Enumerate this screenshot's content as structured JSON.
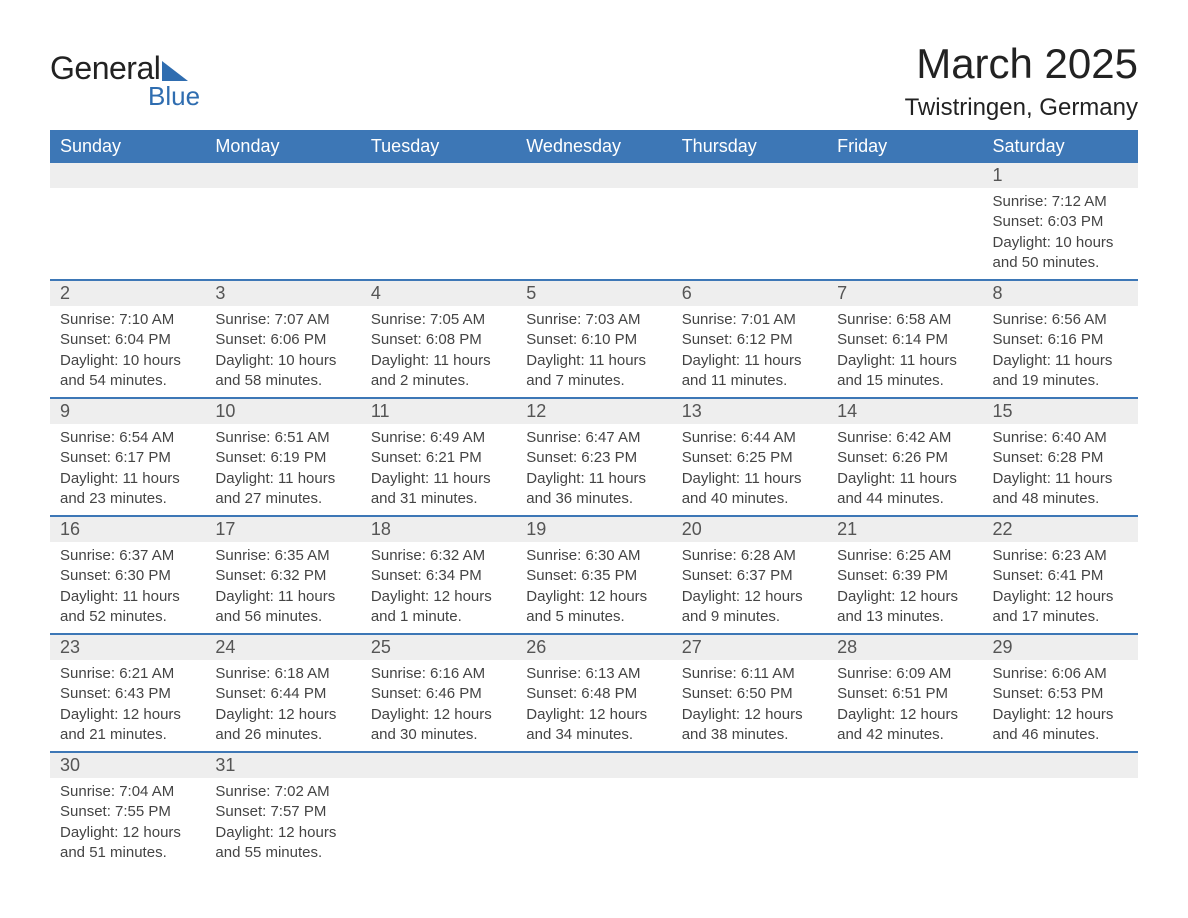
{
  "brand": {
    "text1": "General",
    "text2": "Blue",
    "accent_color": "#2f6db0"
  },
  "title": "March 2025",
  "location": "Twistringen, Germany",
  "header_bg": "#3d77b6",
  "header_fg": "#ffffff",
  "row_divider_color": "#3d77b6",
  "daynum_bg": "#eeeeee",
  "text_color": "#444444",
  "weekdays": [
    "Sunday",
    "Monday",
    "Tuesday",
    "Wednesday",
    "Thursday",
    "Friday",
    "Saturday"
  ],
  "weeks": [
    [
      null,
      null,
      null,
      null,
      null,
      null,
      {
        "n": "1",
        "sr": "Sunrise: 7:12 AM",
        "ss": "Sunset: 6:03 PM",
        "d1": "Daylight: 10 hours",
        "d2": "and 50 minutes."
      }
    ],
    [
      {
        "n": "2",
        "sr": "Sunrise: 7:10 AM",
        "ss": "Sunset: 6:04 PM",
        "d1": "Daylight: 10 hours",
        "d2": "and 54 minutes."
      },
      {
        "n": "3",
        "sr": "Sunrise: 7:07 AM",
        "ss": "Sunset: 6:06 PM",
        "d1": "Daylight: 10 hours",
        "d2": "and 58 minutes."
      },
      {
        "n": "4",
        "sr": "Sunrise: 7:05 AM",
        "ss": "Sunset: 6:08 PM",
        "d1": "Daylight: 11 hours",
        "d2": "and 2 minutes."
      },
      {
        "n": "5",
        "sr": "Sunrise: 7:03 AM",
        "ss": "Sunset: 6:10 PM",
        "d1": "Daylight: 11 hours",
        "d2": "and 7 minutes."
      },
      {
        "n": "6",
        "sr": "Sunrise: 7:01 AM",
        "ss": "Sunset: 6:12 PM",
        "d1": "Daylight: 11 hours",
        "d2": "and 11 minutes."
      },
      {
        "n": "7",
        "sr": "Sunrise: 6:58 AM",
        "ss": "Sunset: 6:14 PM",
        "d1": "Daylight: 11 hours",
        "d2": "and 15 minutes."
      },
      {
        "n": "8",
        "sr": "Sunrise: 6:56 AM",
        "ss": "Sunset: 6:16 PM",
        "d1": "Daylight: 11 hours",
        "d2": "and 19 minutes."
      }
    ],
    [
      {
        "n": "9",
        "sr": "Sunrise: 6:54 AM",
        "ss": "Sunset: 6:17 PM",
        "d1": "Daylight: 11 hours",
        "d2": "and 23 minutes."
      },
      {
        "n": "10",
        "sr": "Sunrise: 6:51 AM",
        "ss": "Sunset: 6:19 PM",
        "d1": "Daylight: 11 hours",
        "d2": "and 27 minutes."
      },
      {
        "n": "11",
        "sr": "Sunrise: 6:49 AM",
        "ss": "Sunset: 6:21 PM",
        "d1": "Daylight: 11 hours",
        "d2": "and 31 minutes."
      },
      {
        "n": "12",
        "sr": "Sunrise: 6:47 AM",
        "ss": "Sunset: 6:23 PM",
        "d1": "Daylight: 11 hours",
        "d2": "and 36 minutes."
      },
      {
        "n": "13",
        "sr": "Sunrise: 6:44 AM",
        "ss": "Sunset: 6:25 PM",
        "d1": "Daylight: 11 hours",
        "d2": "and 40 minutes."
      },
      {
        "n": "14",
        "sr": "Sunrise: 6:42 AM",
        "ss": "Sunset: 6:26 PM",
        "d1": "Daylight: 11 hours",
        "d2": "and 44 minutes."
      },
      {
        "n": "15",
        "sr": "Sunrise: 6:40 AM",
        "ss": "Sunset: 6:28 PM",
        "d1": "Daylight: 11 hours",
        "d2": "and 48 minutes."
      }
    ],
    [
      {
        "n": "16",
        "sr": "Sunrise: 6:37 AM",
        "ss": "Sunset: 6:30 PM",
        "d1": "Daylight: 11 hours",
        "d2": "and 52 minutes."
      },
      {
        "n": "17",
        "sr": "Sunrise: 6:35 AM",
        "ss": "Sunset: 6:32 PM",
        "d1": "Daylight: 11 hours",
        "d2": "and 56 minutes."
      },
      {
        "n": "18",
        "sr": "Sunrise: 6:32 AM",
        "ss": "Sunset: 6:34 PM",
        "d1": "Daylight: 12 hours",
        "d2": "and 1 minute."
      },
      {
        "n": "19",
        "sr": "Sunrise: 6:30 AM",
        "ss": "Sunset: 6:35 PM",
        "d1": "Daylight: 12 hours",
        "d2": "and 5 minutes."
      },
      {
        "n": "20",
        "sr": "Sunrise: 6:28 AM",
        "ss": "Sunset: 6:37 PM",
        "d1": "Daylight: 12 hours",
        "d2": "and 9 minutes."
      },
      {
        "n": "21",
        "sr": "Sunrise: 6:25 AM",
        "ss": "Sunset: 6:39 PM",
        "d1": "Daylight: 12 hours",
        "d2": "and 13 minutes."
      },
      {
        "n": "22",
        "sr": "Sunrise: 6:23 AM",
        "ss": "Sunset: 6:41 PM",
        "d1": "Daylight: 12 hours",
        "d2": "and 17 minutes."
      }
    ],
    [
      {
        "n": "23",
        "sr": "Sunrise: 6:21 AM",
        "ss": "Sunset: 6:43 PM",
        "d1": "Daylight: 12 hours",
        "d2": "and 21 minutes."
      },
      {
        "n": "24",
        "sr": "Sunrise: 6:18 AM",
        "ss": "Sunset: 6:44 PM",
        "d1": "Daylight: 12 hours",
        "d2": "and 26 minutes."
      },
      {
        "n": "25",
        "sr": "Sunrise: 6:16 AM",
        "ss": "Sunset: 6:46 PM",
        "d1": "Daylight: 12 hours",
        "d2": "and 30 minutes."
      },
      {
        "n": "26",
        "sr": "Sunrise: 6:13 AM",
        "ss": "Sunset: 6:48 PM",
        "d1": "Daylight: 12 hours",
        "d2": "and 34 minutes."
      },
      {
        "n": "27",
        "sr": "Sunrise: 6:11 AM",
        "ss": "Sunset: 6:50 PM",
        "d1": "Daylight: 12 hours",
        "d2": "and 38 minutes."
      },
      {
        "n": "28",
        "sr": "Sunrise: 6:09 AM",
        "ss": "Sunset: 6:51 PM",
        "d1": "Daylight: 12 hours",
        "d2": "and 42 minutes."
      },
      {
        "n": "29",
        "sr": "Sunrise: 6:06 AM",
        "ss": "Sunset: 6:53 PM",
        "d1": "Daylight: 12 hours",
        "d2": "and 46 minutes."
      }
    ],
    [
      {
        "n": "30",
        "sr": "Sunrise: 7:04 AM",
        "ss": "Sunset: 7:55 PM",
        "d1": "Daylight: 12 hours",
        "d2": "and 51 minutes."
      },
      {
        "n": "31",
        "sr": "Sunrise: 7:02 AM",
        "ss": "Sunset: 7:57 PM",
        "d1": "Daylight: 12 hours",
        "d2": "and 55 minutes."
      },
      null,
      null,
      null,
      null,
      null
    ]
  ]
}
